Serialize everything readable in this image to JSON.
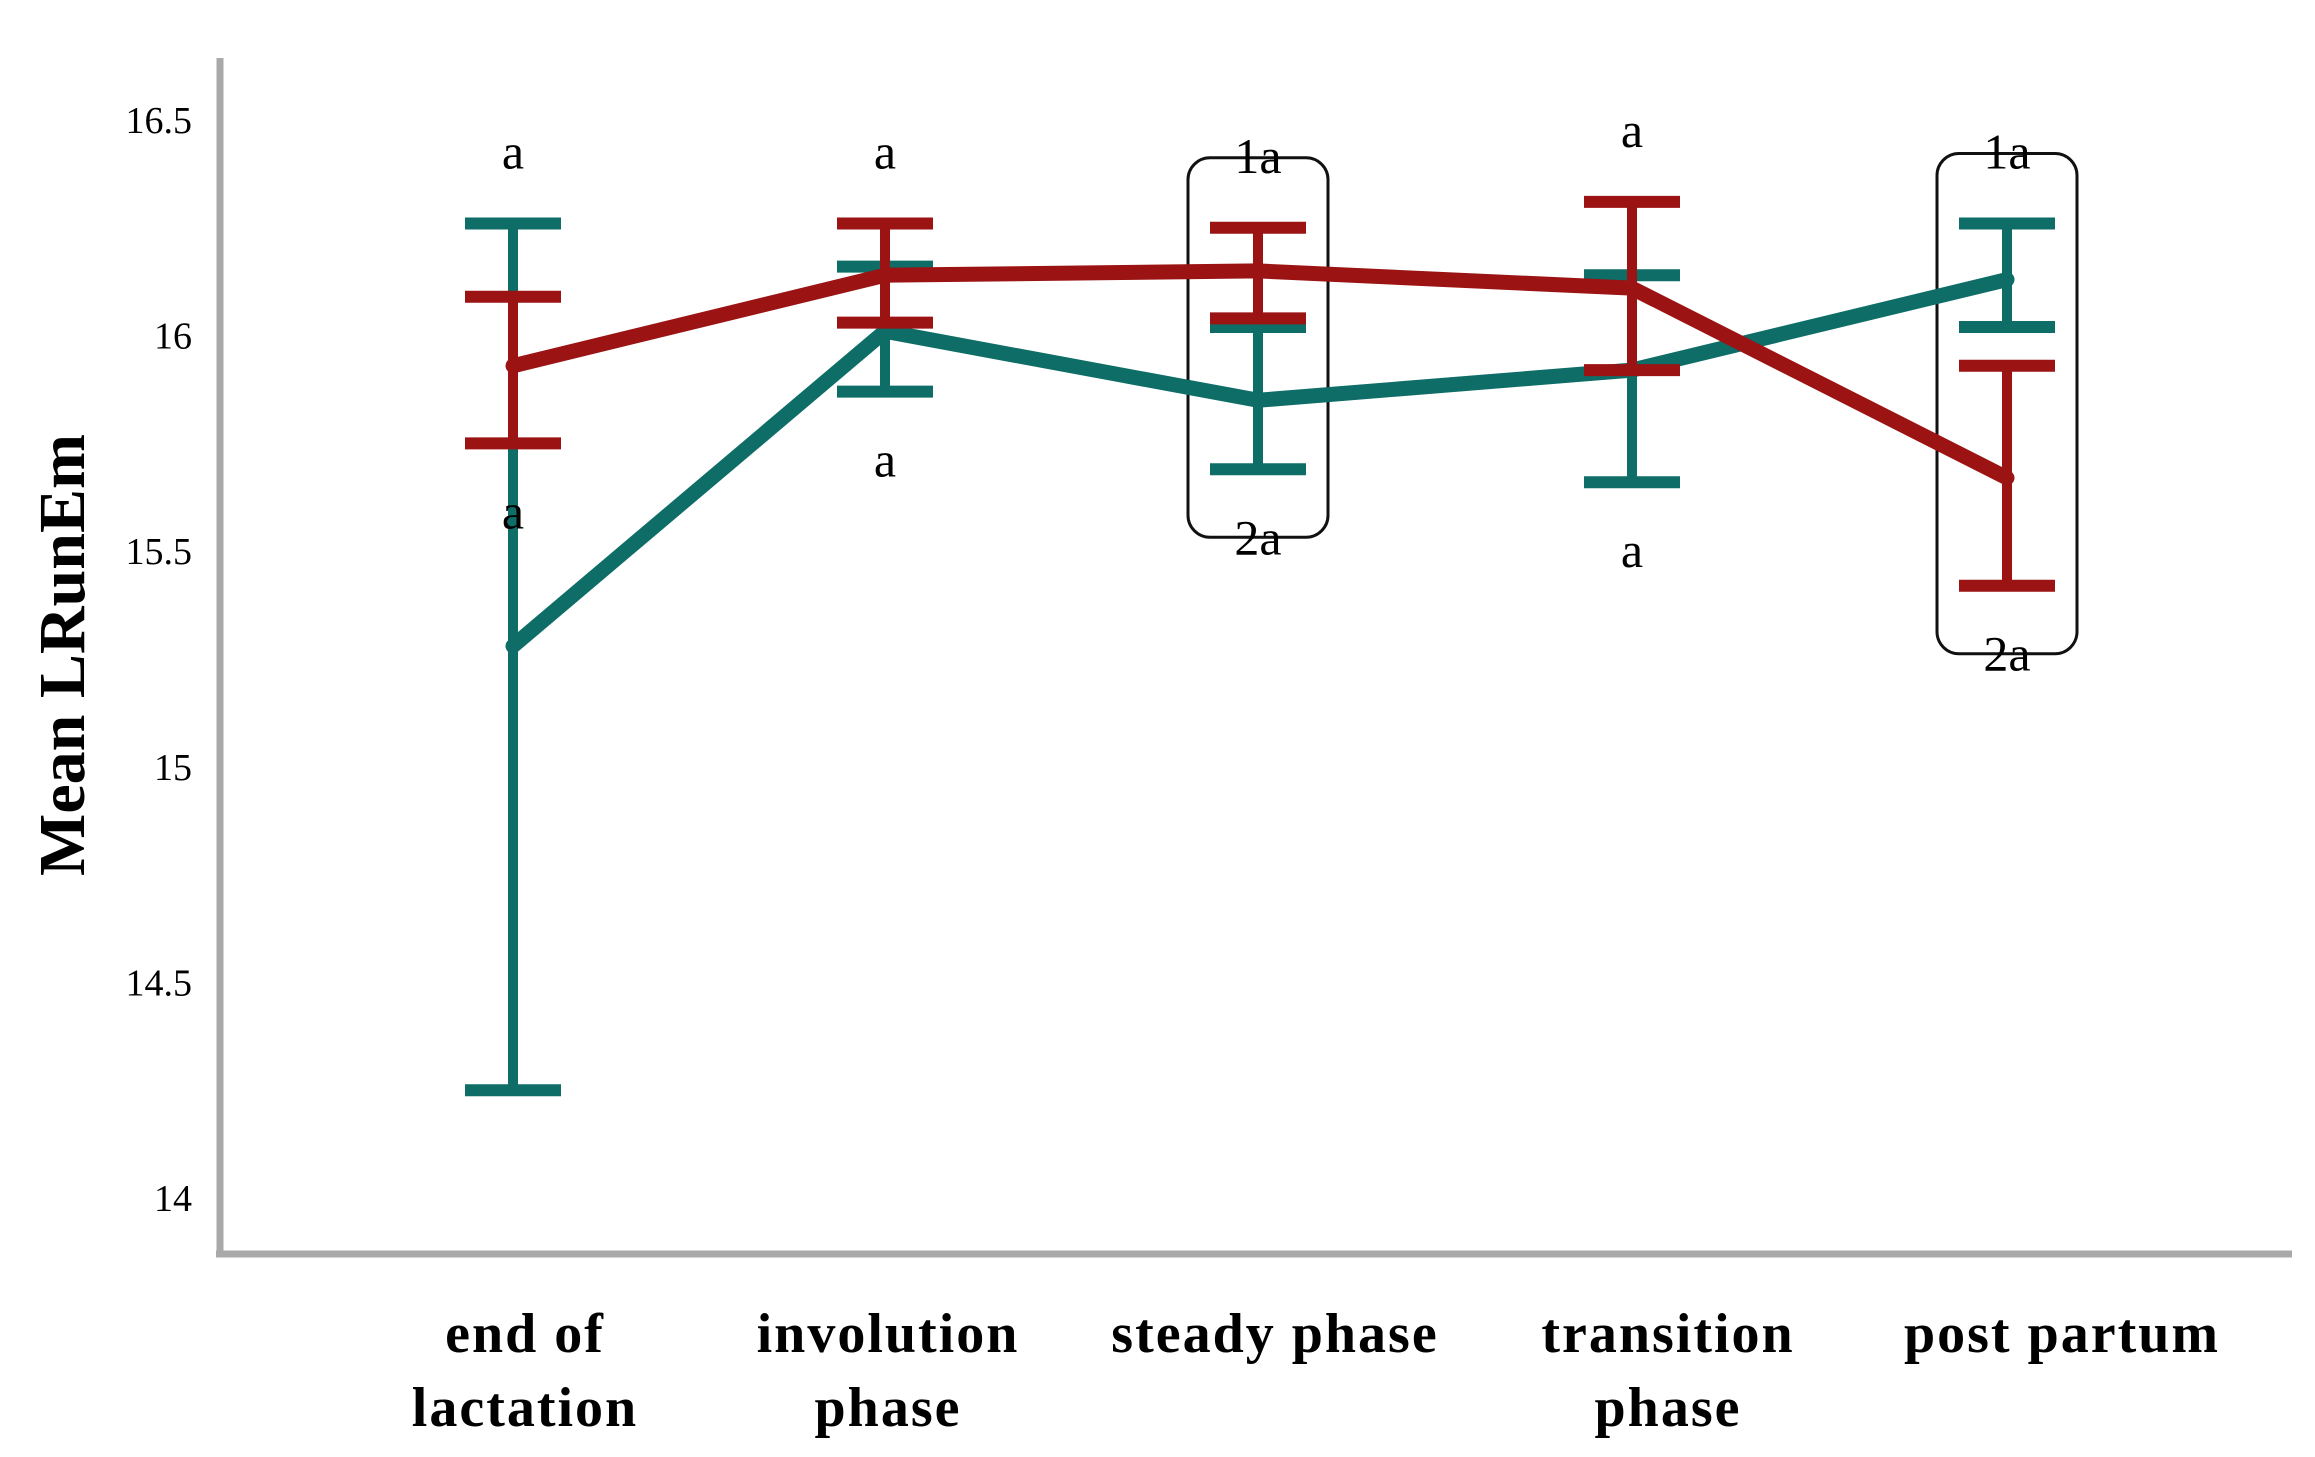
{
  "chart_data": {
    "type": "line",
    "title": "",
    "ylabel": "Mean LRunEm",
    "xlabel": "",
    "ylim": [
      14,
      16.5
    ],
    "yticks": [
      "14",
      "14.5",
      "15",
      "15.5",
      "16",
      "16.5"
    ],
    "categories": [
      [
        "end of",
        "lactation"
      ],
      [
        "involution",
        "phase"
      ],
      [
        "steady phase"
      ],
      [
        "transition",
        "phase"
      ],
      [
        "post partum"
      ]
    ],
    "colors": {
      "red": "#9b1313",
      "teal": "#0e6d67"
    },
    "series": [
      {
        "color": "red",
        "values": [
          15.93,
          16.14,
          16.15,
          16.11,
          15.67
        ],
        "error_low": [
          15.75,
          16.03,
          16.04,
          15.92,
          15.42
        ],
        "error_high": [
          16.09,
          16.26,
          16.25,
          16.31,
          15.93
        ],
        "annotations": [
          "a",
          "a",
          "1a",
          "a",
          "2a"
        ]
      },
      {
        "color": "teal",
        "values": [
          15.28,
          16.01,
          15.85,
          15.92,
          16.13
        ],
        "error_low": [
          14.25,
          15.87,
          15.69,
          15.66,
          16.02
        ],
        "error_high": [
          16.26,
          16.16,
          16.02,
          16.14,
          16.26
        ],
        "annotations": [
          "a",
          "a",
          "2a",
          "a",
          "1a"
        ]
      }
    ],
    "highlighted_categories": [
      "steady phase",
      "post partum"
    ],
    "grid": false,
    "legend": "none"
  }
}
